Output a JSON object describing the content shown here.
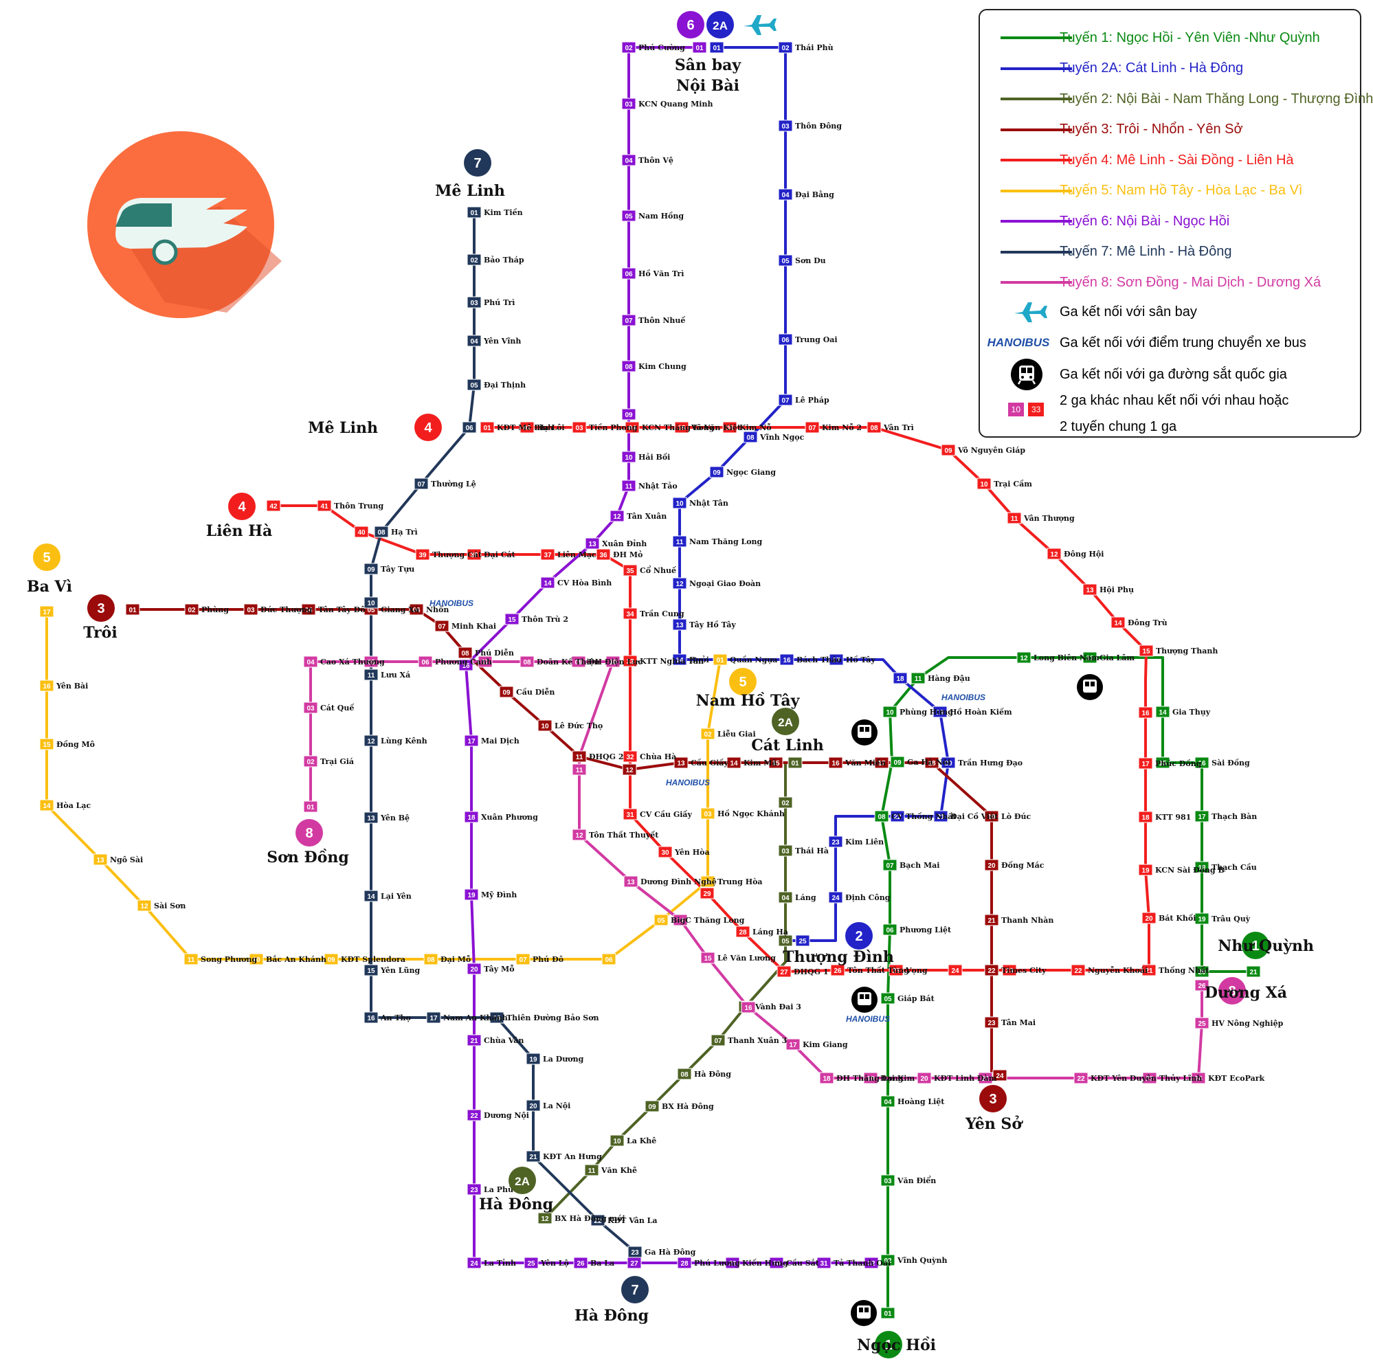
{
  "lines": [
    {
      "id": "1",
      "name": "Tuyến 1: Ngọc Hồi - Yên Viên -Như Quỳnh",
      "color": "#0a8a13"
    },
    {
      "id": "2A",
      "name": "Tuyến 2A: Cát Linh - Hà Đông",
      "color": "#2323c8"
    },
    {
      "id": "2",
      "name": "Tuyến 2: Nội Bài - Nam Thăng Long - Thượng Đình",
      "color": "#4f6325"
    },
    {
      "id": "3",
      "name": "Tuyến 3: Trôi - Nhổn - Yên Sở",
      "color": "#9b0b0b"
    },
    {
      "id": "4",
      "name": "Tuyến 4: Mê Linh - Sài Đồng - Liên Hà",
      "color": "#f21e1e"
    },
    {
      "id": "5",
      "name": "Tuyến 5: Nam Hồ Tây - Hòa Lạc - Ba Vì",
      "color": "#fbbf12"
    },
    {
      "id": "6",
      "name": "Tuyến 6: Nội Bài - Ngọc Hồi",
      "color": "#8a12d2"
    },
    {
      "id": "7",
      "name": "Tuyến 7: Mê Linh - Hà Đông",
      "color": "#22385a"
    },
    {
      "id": "8",
      "name": "Tuyến 8: Sơn Đồng - Mai Dịch - Dương Xá",
      "color": "#d23aa2"
    }
  ],
  "legend_extra": {
    "airport": "Ga kết nối với sân bay",
    "bus": "Ga kết nối với điểm trung chuyển xe bus",
    "rail": "Ga kết nối với ga đường sắt quốc gia",
    "interchange_1": "2 ga khác nhau kết nối với nhau hoặc",
    "interchange_2": "2 tuyến chung 1 ga",
    "sample_a": "10",
    "sample_b": "33",
    "bus_logo": "HANOIBUS"
  },
  "terminals": [
    {
      "label": "Sân bay",
      "label2": "Nội Bài"
    },
    {
      "label": "Mê Linh"
    },
    {
      "label": "Mê Linh"
    },
    {
      "label": "Liên Hà"
    },
    {
      "label": "Ba Vì"
    },
    {
      "label": "Trôi"
    },
    {
      "label": "Sơn Đồng"
    },
    {
      "label": "Nam Hồ Tây"
    },
    {
      "label": "Cát Linh"
    },
    {
      "label": "Thượng Đình"
    },
    {
      "label": "Như Quỳnh"
    },
    {
      "label": "Dương Xá"
    },
    {
      "label": "Yên Sở"
    },
    {
      "label": "Hà Đông"
    },
    {
      "label": "Hà Đông"
    },
    {
      "label": "Ngọc Hồi"
    }
  ],
  "stations": {
    "L1": [
      [
        "01",
        ""
      ],
      [
        "03",
        "Văn Điển"
      ],
      [
        "04",
        "Hoàng Liệt"
      ],
      [
        "05",
        "Giáp Bát"
      ],
      [
        "06",
        "Phương Liệt"
      ],
      [
        "07",
        "Bạch Mai"
      ],
      [
        "08",
        "CV Thống Nhất"
      ],
      [
        "09",
        "Ga Hà Nội"
      ],
      [
        "10",
        "Phùng Hưng"
      ],
      [
        "11",
        "Hàng Đậu"
      ],
      [
        "12",
        "Long Biên Nam"
      ],
      [
        "13",
        "Gia Lâm"
      ],
      [
        "14",
        "Gia Thụy"
      ],
      [
        "15",
        ""
      ],
      [
        "16",
        "Sài Đồng"
      ],
      [
        "17",
        "Thạch Bàn"
      ],
      [
        "18",
        "Thạch Cầu"
      ],
      [
        "19",
        "Trâu Quỳ"
      ],
      [
        "20",
        ""
      ],
      [
        "21",
        ""
      ],
      [
        "02",
        "Vĩnh Quỳnh"
      ]
    ],
    "L2A": [
      [
        "01",
        ""
      ],
      [
        "02",
        "Thái Phù"
      ],
      [
        "03",
        "Thôn Đông"
      ],
      [
        "04",
        "Đại Bằng"
      ],
      [
        "05",
        "Sơn Du"
      ],
      [
        "06",
        "Trung Oai"
      ],
      [
        "07",
        "Lê Pháp"
      ],
      [
        "08",
        "Vĩnh Ngọc"
      ],
      [
        "09",
        "Ngọc Giang"
      ],
      [
        "10",
        "Nhật Tân"
      ],
      [
        "11",
        "Nam Thăng Long"
      ],
      [
        "12",
        "Ngoại Giao Đoàn"
      ],
      [
        "13",
        "Tây Hồ Tây"
      ],
      [
        "14",
        "Bưởi"
      ],
      [
        "15",
        "Quần Ngựa"
      ],
      [
        "16",
        "Bách Thảo"
      ],
      [
        "17",
        "Hồ Tây"
      ],
      [
        "18",
        ""
      ],
      [
        "19",
        "Hồ Hoàn Kiếm"
      ],
      [
        "20",
        "Trần Hưng Đạo"
      ],
      [
        "21",
        "Đại Cồ Việt"
      ],
      [
        "22",
        ""
      ],
      [
        "23",
        "Kim Liên"
      ],
      [
        "24",
        "Định Công"
      ],
      [
        "25",
        ""
      ]
    ],
    "L2": [
      [
        "01",
        ""
      ],
      [
        "02",
        ""
      ],
      [
        "03",
        "Thái Hà"
      ],
      [
        "04",
        "Láng"
      ],
      [
        "05",
        ""
      ],
      [
        "06",
        "Vành Đai 3"
      ],
      [
        "07",
        "Thanh Xuân 3"
      ],
      [
        "08",
        "Hà Đông"
      ],
      [
        "09",
        "BX Hà Đông"
      ],
      [
        "10",
        "La Khê"
      ],
      [
        "11",
        "Văn Khê"
      ],
      [
        "12",
        "BX Hà Đông mới"
      ]
    ],
    "L3": [
      [
        "01",
        ""
      ],
      [
        "02",
        "Phùng"
      ],
      [
        "03",
        "Đức Thượng"
      ],
      [
        "04",
        "Tân Tây Đô"
      ],
      [
        "05",
        "Giang Xá"
      ],
      [
        "06",
        "Nhổn"
      ],
      [
        "07",
        "Minh Khai"
      ],
      [
        "08",
        "Phú Diễn"
      ],
      [
        "09",
        "Cầu Diễn"
      ],
      [
        "10",
        "Lê Đức Thọ"
      ],
      [
        "11",
        "ĐHQG 2"
      ],
      [
        "12",
        ""
      ],
      [
        "13",
        "Cầu Giấy"
      ],
      [
        "14",
        "Kim Mã"
      ],
      [
        "15",
        ""
      ],
      [
        "16",
        "Văn Miếu"
      ],
      [
        "17",
        ""
      ],
      [
        "18",
        ""
      ],
      [
        "19",
        "Lò Đúc"
      ],
      [
        "20",
        "Đống Mác"
      ],
      [
        "21",
        "Thanh Nhàn"
      ],
      [
        "22",
        "Times City"
      ],
      [
        "23",
        "Tân Mai"
      ],
      [
        "24",
        ""
      ]
    ],
    "L4": [
      [
        "01",
        "KĐT Mê Linh"
      ],
      [
        "02",
        "Hạ Lôi"
      ],
      [
        "03",
        "Tiền Phong"
      ],
      [
        "04",
        "KCN Thăng Long"
      ],
      [
        "05",
        "Võ Văn Kiệt"
      ],
      [
        "06",
        "Kim Nỗ"
      ],
      [
        "07",
        "Kim Nỗ 2"
      ],
      [
        "08",
        "Vân Trì"
      ],
      [
        "09",
        "Võ Nguyên Giáp"
      ],
      [
        "10",
        "Trại Cầm"
      ],
      [
        "11",
        "Vân Thượng"
      ],
      [
        "12",
        "Đông Hội"
      ],
      [
        "13",
        "Hội Phụ"
      ],
      [
        "14",
        "Đông Trù"
      ],
      [
        "15",
        "Thượng Thanh"
      ],
      [
        "16",
        ""
      ],
      [
        "17",
        "Phúc Đồng"
      ],
      [
        "18",
        "KTT 981"
      ],
      [
        "19",
        "KCN Sài Đồng B"
      ],
      [
        "20",
        "Bát Khối"
      ],
      [
        "21",
        "Thống Nhất"
      ],
      [
        "22",
        "Nguyễn Khoái"
      ],
      [
        "23",
        ""
      ],
      [
        "24",
        ""
      ],
      [
        "25",
        "Vọng"
      ],
      [
        "26",
        "Tôn Thất Tùng"
      ],
      [
        "27",
        "ĐHQG 1"
      ],
      [
        "28",
        "Láng Hạ"
      ],
      [
        "29",
        ""
      ],
      [
        "30",
        "Yên Hòa"
      ],
      [
        "31",
        "CV Cầu Giấy"
      ],
      [
        "32",
        "Chùa Hà"
      ],
      [
        "33",
        "KTT Nghĩa Tân"
      ],
      [
        "34",
        "Trần Cung"
      ],
      [
        "35",
        "Cổ Nhuế"
      ],
      [
        "36",
        "ĐH Mỏ"
      ],
      [
        "37",
        "Liên Mạc"
      ],
      [
        "38",
        "Đại Cát"
      ],
      [
        "39",
        "Thượng Cát"
      ],
      [
        "40",
        ""
      ],
      [
        "41",
        "Thôn Trung"
      ],
      [
        "42",
        ""
      ]
    ],
    "L5": [
      [
        "01",
        ""
      ],
      [
        "02",
        "Liễu Giai"
      ],
      [
        "03",
        "Hồ Ngọc Khánh"
      ],
      [
        "04",
        "Trung Hòa"
      ],
      [
        "05",
        "BigC Thăng Long"
      ],
      [
        "06",
        ""
      ],
      [
        "07",
        "Phú Đô"
      ],
      [
        "08",
        "Đại Mỗ"
      ],
      [
        "09",
        "KĐT Splendora"
      ],
      [
        "10",
        "Bắc An Khánh"
      ],
      [
        "11",
        "Song Phương"
      ],
      [
        "12",
        "Sài Sơn"
      ],
      [
        "13",
        "Ngô Sài"
      ],
      [
        "14",
        "Hòa Lạc"
      ],
      [
        "15",
        "Đồng Mô"
      ],
      [
        "16",
        "Yên Bài"
      ],
      [
        "17",
        ""
      ]
    ],
    "L6": [
      [
        "01",
        ""
      ],
      [
        "02",
        "Phú Cường"
      ],
      [
        "03",
        "KCN Quang Minh"
      ],
      [
        "04",
        "Thôn Vệ"
      ],
      [
        "05",
        "Nam Hồng"
      ],
      [
        "06",
        "Hồ Văn Trì"
      ],
      [
        "07",
        "Thôn Nhuế"
      ],
      [
        "08",
        "Kim Chung"
      ],
      [
        "09",
        ""
      ],
      [
        "10",
        "Hải Bối"
      ],
      [
        "11",
        "Nhật Tảo"
      ],
      [
        "12",
        "Tân Xuân"
      ],
      [
        "13",
        "Xuân Đỉnh"
      ],
      [
        "14",
        "CV Hòa Bình"
      ],
      [
        "15",
        "Thôn Trù 2"
      ],
      [
        "16",
        ""
      ],
      [
        "17",
        "Mai Dịch"
      ],
      [
        "18",
        "Xuân Phương"
      ],
      [
        "19",
        "Mỹ Đình"
      ],
      [
        "20",
        "Tây Mỗ"
      ],
      [
        "21",
        "Chùa Vân"
      ],
      [
        "22",
        "Dương Nội"
      ],
      [
        "23",
        "La Phù"
      ],
      [
        "24",
        "La Tỉnh"
      ],
      [
        "25",
        "Yên Lộ"
      ],
      [
        "26",
        "Ba La"
      ],
      [
        "27",
        ""
      ],
      [
        "28",
        "Phú Lương"
      ],
      [
        "29",
        "Kiến Hưng"
      ],
      [
        "30",
        "Cầu Sắt"
      ],
      [
        "31",
        "Tả Thanh Oai"
      ],
      [
        "32",
        ""
      ]
    ],
    "L7": [
      [
        "01",
        "Kim Tiền"
      ],
      [
        "02",
        "Bảo Tháp"
      ],
      [
        "03",
        "Phú Trì"
      ],
      [
        "04",
        "Yên Vĩnh"
      ],
      [
        "05",
        "Đại Thịnh"
      ],
      [
        "06",
        ""
      ],
      [
        "07",
        "Thường Lệ"
      ],
      [
        "08",
        "Hạ Trì"
      ],
      [
        "09",
        "Tây Tựu"
      ],
      [
        "10",
        ""
      ],
      [
        "11",
        "Lưu Xá"
      ],
      [
        "12",
        "Lùng Kênh"
      ],
      [
        "13",
        "Yên Bệ"
      ],
      [
        "14",
        "Lại Yên"
      ],
      [
        "15",
        "Yên Lũng"
      ],
      [
        "16",
        "An Thọ"
      ],
      [
        "17",
        "Nam An Khánh"
      ],
      [
        "18",
        "Thiên Đường Bảo Sơn"
      ],
      [
        "19",
        "La Dương"
      ],
      [
        "20",
        "La Nội"
      ],
      [
        "21",
        "KĐT An Hưng"
      ],
      [
        "22",
        "KĐT Vân La"
      ],
      [
        "23",
        "Ga Hà Đông"
      ]
    ],
    "L8": [
      [
        "01",
        ""
      ],
      [
        "02",
        "Trại Giá"
      ],
      [
        "03",
        "Cát Quế"
      ],
      [
        "04",
        "Cao Xá  Thượng"
      ],
      [
        "05",
        ""
      ],
      [
        "06",
        "Phương Canh"
      ],
      [
        "07",
        ""
      ],
      [
        "08",
        "Doãn Kế Thiện"
      ],
      [
        "09",
        "ĐH Điện Lực"
      ],
      [
        "10",
        ""
      ],
      [
        "11",
        ""
      ],
      [
        "12",
        "Tôn Thất Thuyết"
      ],
      [
        "13",
        "Dương Đình Nghệ"
      ],
      [
        "14",
        ""
      ],
      [
        "15",
        "Lê Văn Lương"
      ],
      [
        "16",
        ""
      ],
      [
        "17",
        "Kim Giang"
      ],
      [
        "18",
        "ĐH Thăng Long"
      ],
      [
        "19",
        "Đại Kim"
      ],
      [
        "20",
        "KĐT Linh Đàm"
      ],
      [
        "21",
        ""
      ],
      [
        "22",
        "KĐT Yên Duyên"
      ],
      [
        "23",
        "Thủy Lĩnh"
      ],
      [
        "24",
        "KĐT EcoPark"
      ],
      [
        "25",
        "HV Nông Nghiệp"
      ],
      [
        "26",
        ""
      ]
    ]
  }
}
